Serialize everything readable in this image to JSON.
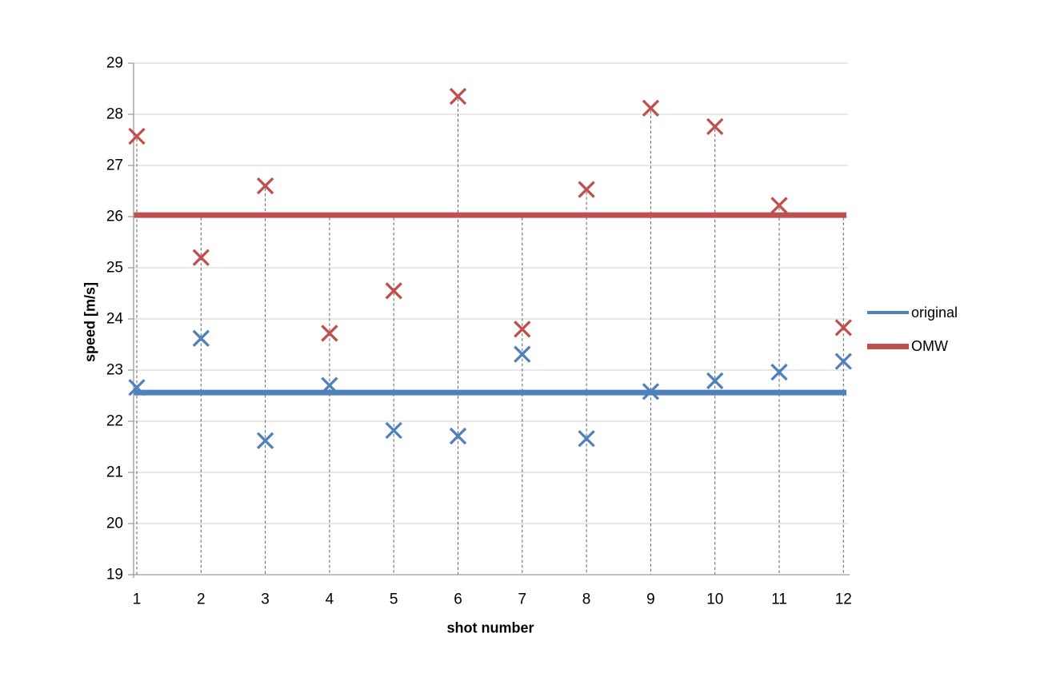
{
  "chart_data": {
    "type": "scatter",
    "title": "",
    "xlabel": "shot number",
    "ylabel": "speed [m/s]",
    "x": [
      1,
      2,
      3,
      4,
      5,
      6,
      7,
      8,
      9,
      10,
      11,
      12
    ],
    "xticks": [
      "1",
      "2",
      "3",
      "4",
      "5",
      "6",
      "7",
      "8",
      "9",
      "10",
      "11",
      "12"
    ],
    "yticks": [
      "19",
      "20",
      "21",
      "22",
      "23",
      "24",
      "25",
      "26",
      "27",
      "28",
      "29"
    ],
    "ylim": [
      19,
      29
    ],
    "xlim": [
      0.95,
      12.07
    ],
    "grid": "horizontal",
    "legend_position": "right",
    "marker": "x",
    "series": [
      {
        "name": "original",
        "color": "#4F81BD",
        "marker": "x",
        "values": [
          22.66,
          23.62,
          21.62,
          22.7,
          21.82,
          21.71,
          23.31,
          21.66,
          22.58,
          22.79,
          22.96,
          23.17
        ],
        "mean_line": 22.56
      },
      {
        "name": "OMW",
        "color": "#C0504D",
        "marker": "x",
        "values": [
          27.57,
          25.2,
          26.6,
          23.72,
          24.55,
          28.35,
          23.8,
          26.53,
          28.12,
          27.76,
          26.22,
          23.83
        ],
        "mean_line": 26.03
      }
    ],
    "droplines": {
      "style": "dashed",
      "from": "max(OMW value, OMW mean line)",
      "to": "x-axis"
    }
  },
  "colors": {
    "original": "#4F81BD",
    "omw": "#C0504D",
    "gridline": "#D9D9D9",
    "axis": "#9B9B9B",
    "dropline": "#606060",
    "text": "#000000",
    "background": "#FFFFFF"
  }
}
